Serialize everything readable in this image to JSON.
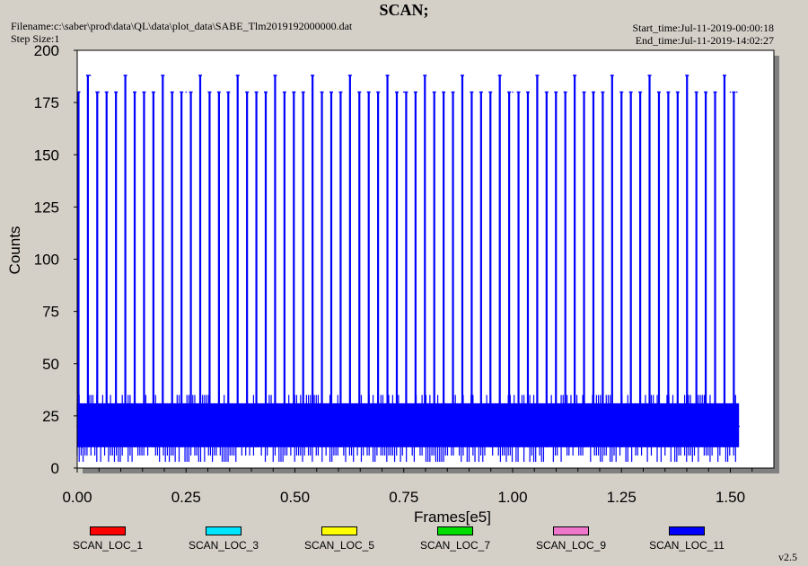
{
  "header": {
    "title": "SCAN;",
    "filename": "Filename:c:\\saber\\prod\\data\\QL\\data\\plot_data\\SABE_Tlm2019192000000.dat",
    "step_size": "Step Size:1",
    "start_time": "Start_time:Jul-11-2019-00:00:18",
    "end_time": "End_time:Jul-11-2019-14:02:27"
  },
  "version": "v2.5",
  "colors": {
    "plot_bg": "#ffffff",
    "window_bg": "#d4d0c8",
    "series_main": "#0000ff"
  },
  "chart_data": {
    "type": "line",
    "title": "SCAN;",
    "xlabel": "Frames[e5]",
    "ylabel": "Counts",
    "xlim": [
      0,
      1.6
    ],
    "ylim": [
      0,
      200
    ],
    "x_ticks": [
      "0.00",
      "0.25",
      "0.50",
      "0.75",
      "1.00",
      "1.25",
      "1.50"
    ],
    "y_ticks": [
      "0",
      "25",
      "50",
      "75",
      "100",
      "125",
      "150",
      "175",
      "200"
    ],
    "grid": false,
    "legend_position": "bottom",
    "series": [
      {
        "name": "SCAN_LOC_1",
        "color": "#ff0000"
      },
      {
        "name": "SCAN_LOC_3",
        "color": "#00e5ff"
      },
      {
        "name": "SCAN_LOC_5",
        "color": "#ffff00"
      },
      {
        "name": "SCAN_LOC_7",
        "color": "#00dd00"
      },
      {
        "name": "SCAN_LOC_9",
        "color": "#ee77cc"
      },
      {
        "name": "SCAN_LOC_11",
        "color": "#0000ff",
        "x_range": [
          0.0,
          1.52
        ],
        "baseline_band": [
          10,
          31
        ],
        "spike_values": [
          180,
          188
        ],
        "spike_period": 0.0215,
        "points": [
          {
            "x": 0.0,
            "y": 20
          },
          {
            "x": 0.005,
            "y": 180
          },
          {
            "x": 0.012,
            "y": 10
          },
          {
            "x": 0.03,
            "y": 188
          },
          {
            "x": 0.035,
            "y": 28
          },
          {
            "x": 0.05,
            "y": 180
          },
          {
            "x": 0.25,
            "y": 180
          },
          {
            "x": 0.5,
            "y": 180
          },
          {
            "x": 0.75,
            "y": 180
          },
          {
            "x": 1.0,
            "y": 180
          },
          {
            "x": 1.25,
            "y": 180
          },
          {
            "x": 1.5,
            "y": 180
          },
          {
            "x": 1.515,
            "y": 180
          },
          {
            "x": 1.52,
            "y": 20
          }
        ]
      }
    ]
  }
}
